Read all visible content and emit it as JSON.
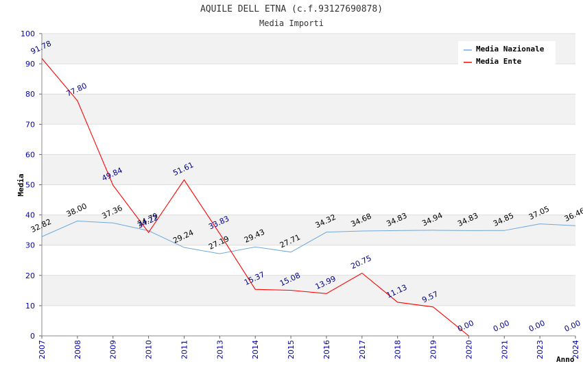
{
  "chart_data": {
    "type": "line",
    "title": "AQUILE DELL ETNA (c.f.93127690878)",
    "subtitle": "Media Importi",
    "xlabel": "Anno",
    "ylabel": "Media",
    "ylim": [
      0,
      100
    ],
    "yticks": [
      "0",
      "10",
      "20",
      "30",
      "40",
      "50",
      "60",
      "70",
      "80",
      "90",
      "100"
    ],
    "categories": [
      "2007",
      "2008",
      "2009",
      "2010",
      "2011",
      "2013",
      "2014",
      "2015",
      "2016",
      "2017",
      "2018",
      "2019",
      "2020",
      "2021",
      "2023",
      "2024"
    ],
    "grid": true,
    "legend_position": "top-right",
    "series": [
      {
        "name": "Media Nazionale",
        "color": "#6fa8dc",
        "label_color": "#000000",
        "values": [
          32.82,
          38.0,
          37.36,
          34.79,
          29.24,
          27.19,
          29.43,
          27.71,
          34.32,
          34.68,
          34.83,
          34.94,
          34.83,
          34.85,
          37.05,
          36.46
        ],
        "labels": [
          "32.82",
          "38.00",
          "37.36",
          "34.79",
          "29.24",
          "27.19",
          "29.43",
          "27.71",
          "34.32",
          "34.68",
          "34.83",
          "34.94",
          "34.83",
          "34.85",
          "37.05",
          "36.46"
        ]
      },
      {
        "name": "Media Ente",
        "color": "#ff0000",
        "label_color": "#000080",
        "values": [
          91.78,
          77.8,
          49.84,
          34.22,
          51.61,
          33.83,
          15.37,
          15.08,
          13.99,
          20.75,
          11.13,
          9.57,
          0.0,
          0.0,
          0.0,
          0.0
        ],
        "labels": [
          "91.78",
          "77.80",
          "49.84",
          "34.22",
          "51.61",
          "33.83",
          "15.37",
          "15.08",
          "13.99",
          "20.75",
          "11.13",
          "9.57",
          "0.00",
          "0.00",
          "0.00",
          "0.00"
        ],
        "line_points": 13
      }
    ]
  }
}
